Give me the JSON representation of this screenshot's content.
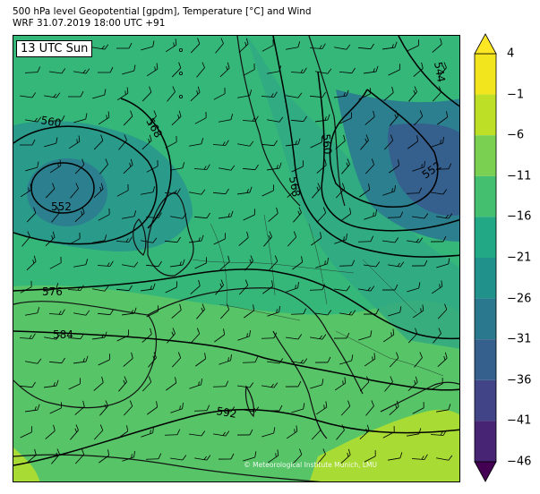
{
  "header": {
    "line1": "500 hPa level Geopotential [gpdm], Temperature [°C] and Wind",
    "line2": "WRF 31.07.2019 18:00 UTC +91"
  },
  "time_label": "13 UTC Sun",
  "credit": "© Meteorological Institute Munich, LMU",
  "colorbar": {
    "ticks": [
      "4",
      "−1",
      "−6",
      "−11",
      "−16",
      "−21",
      "−26",
      "−31",
      "−36",
      "−41",
      "−46"
    ],
    "colors": [
      "#f3e51d",
      "#bddf26",
      "#7ad151",
      "#44bf70",
      "#22a884",
      "#21918c",
      "#2a788e",
      "#355f8d",
      "#414487",
      "#482475",
      "#440154"
    ]
  },
  "isolines": [
    {
      "label": "544"
    },
    {
      "label": "552"
    },
    {
      "label": "552"
    },
    {
      "label": "560"
    },
    {
      "label": "560"
    },
    {
      "label": "568"
    },
    {
      "label": "568"
    },
    {
      "label": "576"
    },
    {
      "label": "584"
    },
    {
      "label": "592"
    }
  ]
}
